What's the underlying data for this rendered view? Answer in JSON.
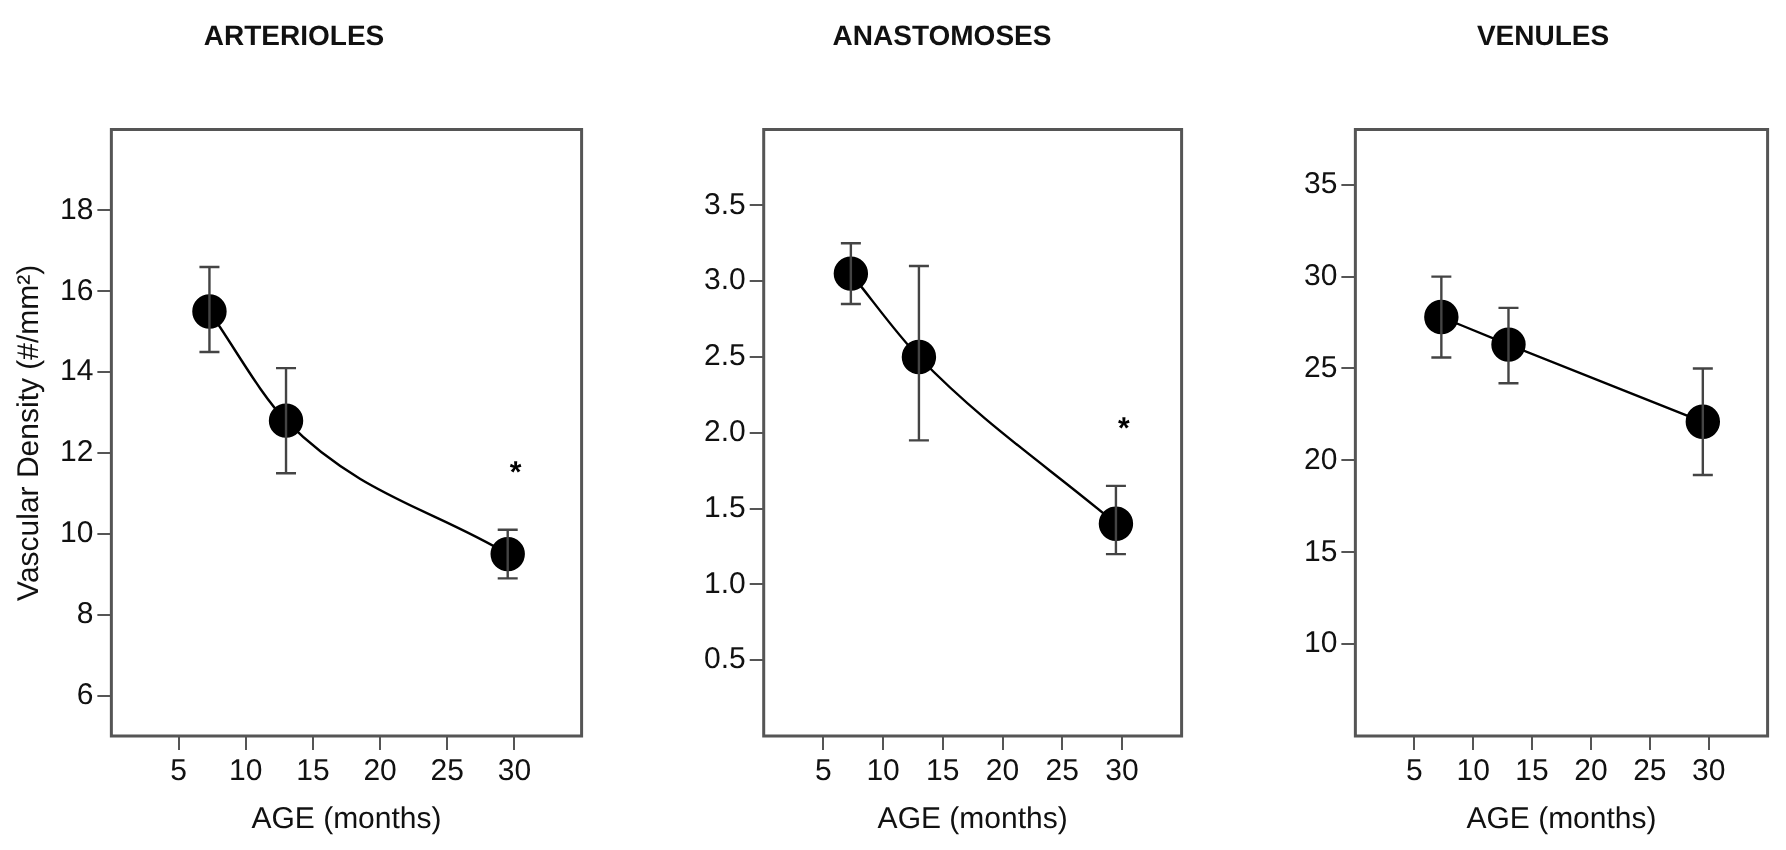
{
  "chart_data": [
    {
      "type": "line",
      "title": "ARTERIOLES",
      "xlabel": "AGE (months)",
      "ylabel": "Vascular Density (#/mm²)",
      "x": [
        7.3,
        13,
        29.5
      ],
      "series": [
        {
          "color": "#000000",
          "values": [
            15.5,
            12.8,
            9.5
          ],
          "errors": [
            [
              14.5,
              16.6
            ],
            [
              11.5,
              14.1
            ],
            [
              8.9,
              10.1
            ]
          ]
        }
      ],
      "xlim": [
        0,
        35
      ],
      "xticks": [
        5,
        10,
        15,
        20,
        25,
        30
      ],
      "ylim": [
        5,
        20
      ],
      "yticks": [
        6,
        8,
        10,
        12,
        14,
        16,
        18
      ],
      "grid": false,
      "marker": "circle",
      "line_style": "solid",
      "annotations": [
        "*"
      ]
    },
    {
      "type": "line",
      "title": "ANASTOMOSES",
      "xlabel": "AGE (months)",
      "x": [
        7.3,
        13,
        29.5
      ],
      "series": [
        {
          "color": "#000000",
          "values": [
            3.05,
            2.5,
            1.4
          ],
          "errors": [
            [
              2.85,
              3.25
            ],
            [
              1.95,
              3.1
            ],
            [
              1.2,
              1.65
            ]
          ]
        }
      ],
      "xlim": [
        0,
        35
      ],
      "xticks": [
        5,
        10,
        15,
        20,
        25,
        30
      ],
      "ylim": [
        0,
        4
      ],
      "yticks": [
        {
          "value": 0.5,
          "label": "0.5"
        },
        {
          "value": 1,
          "label": "1.0"
        },
        {
          "value": 1.5,
          "label": "1.5"
        },
        {
          "value": 2,
          "label": "2.0"
        },
        {
          "value": 2.5,
          "label": "2.5"
        },
        {
          "value": 3,
          "label": "3.0"
        },
        {
          "value": 3.5,
          "label": "3.5"
        }
      ],
      "grid": false,
      "marker": "circle",
      "line_style": "solid",
      "annotations": [
        "*"
      ]
    },
    {
      "type": "line",
      "title": "VENULES",
      "xlabel": "AGE (months)",
      "x": [
        7.3,
        13,
        29.5
      ],
      "series": [
        {
          "color": "#000000",
          "values": [
            27.8,
            26.3,
            22.1
          ],
          "errors": [
            [
              25.6,
              30
            ],
            [
              24.2,
              28.3
            ],
            [
              19.2,
              25
            ]
          ]
        }
      ],
      "xlim": [
        0,
        35
      ],
      "xticks": [
        5,
        10,
        15,
        20,
        25,
        30
      ],
      "ylim": [
        5,
        38
      ],
      "yticks": [
        10,
        15,
        20,
        25,
        30,
        35
      ],
      "grid": false,
      "marker": "circle",
      "line_style": "solid"
    }
  ]
}
